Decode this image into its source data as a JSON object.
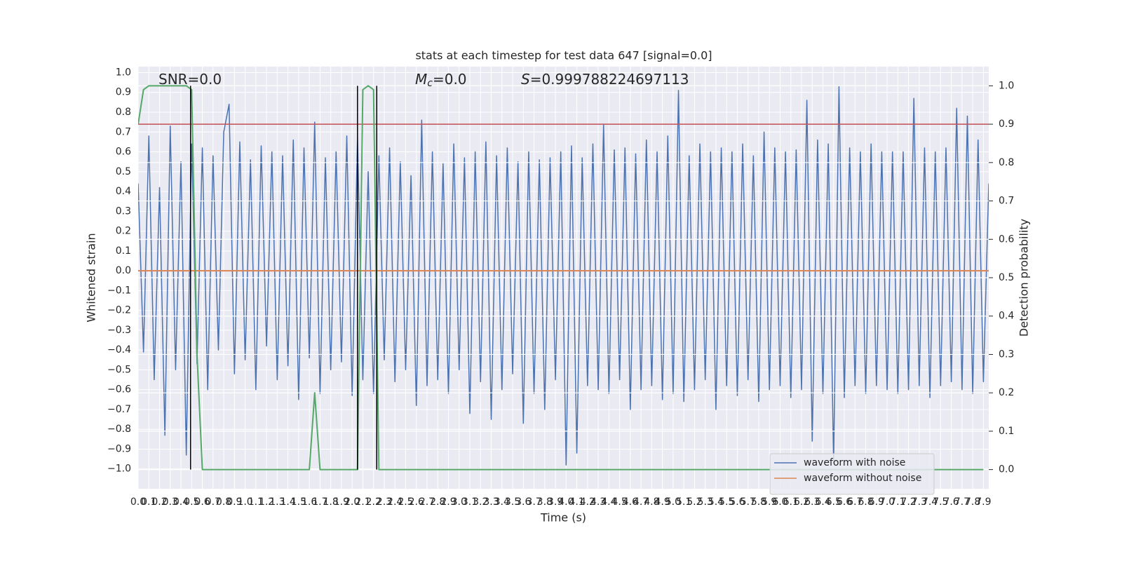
{
  "chart_data": {
    "type": "line",
    "title": "stats at each timestep for test data 647 [signal=0.0]",
    "xlabel": "Time (s)",
    "ylabel": "Whitened strain",
    "y2label": "Detection probability",
    "annotations": [
      {
        "text": "SNR=0.0"
      },
      {
        "symbol": "M",
        "subscript": "c",
        "text": "=0.0"
      },
      {
        "symbol": "S",
        "text": "=0.999788224697113"
      }
    ],
    "background": "#eaeaf2",
    "grid": true,
    "legend": "lower right",
    "xlim": [
      0,
      7.95
    ],
    "ylim": [
      -1.1,
      1.03
    ],
    "y2lim": [
      -0.05,
      1.05
    ],
    "xticks": [
      {
        "value": 0,
        "label": "0.0"
      },
      0.1,
      0.2,
      0.3,
      0.4,
      0.5,
      0.6,
      0.7,
      0.8,
      0.9,
      {
        "value": 1,
        "label": "1.0"
      },
      1.1,
      1.2,
      1.3,
      1.4,
      1.5,
      1.6,
      1.7,
      1.8,
      1.9,
      {
        "value": 2,
        "label": "2.0"
      },
      2.1,
      2.2,
      2.3,
      2.4,
      2.5,
      2.6,
      2.7,
      2.8,
      2.9,
      {
        "value": 3,
        "label": "3.0"
      },
      3.1,
      3.2,
      3.3,
      3.4,
      3.5,
      3.6,
      3.7,
      3.8,
      3.9,
      {
        "value": 4,
        "label": "4.0"
      },
      4.1,
      4.2,
      4.3,
      4.4,
      4.5,
      4.6,
      4.7,
      4.8,
      4.9,
      {
        "value": 5,
        "label": "5.0"
      },
      5.1,
      5.2,
      5.3,
      5.4,
      5.5,
      5.6,
      5.7,
      5.8,
      5.9,
      {
        "value": 6,
        "label": "6.0"
      },
      6.1,
      6.2,
      6.3,
      6.4,
      6.5,
      6.6,
      6.7,
      6.8,
      6.9,
      {
        "value": 7,
        "label": "7.0"
      },
      7.1,
      7.2,
      7.3,
      7.4,
      7.5,
      7.6,
      7.7,
      7.8,
      7.9
    ],
    "yticks": [
      {
        "value": -1,
        "label": "−1.0"
      },
      {
        "value": -0.9,
        "label": "−0.9"
      },
      {
        "value": -0.8,
        "label": "−0.8"
      },
      {
        "value": -0.7,
        "label": "−0.7"
      },
      {
        "value": -0.6,
        "label": "−0.6"
      },
      {
        "value": -0.5,
        "label": "−0.5"
      },
      {
        "value": -0.4,
        "label": "−0.4"
      },
      {
        "value": -0.3,
        "label": "−0.3"
      },
      {
        "value": -0.2,
        "label": "−0.2"
      },
      {
        "value": -0.1,
        "label": "−0.1"
      },
      {
        "value": 0,
        "label": "0.0"
      },
      0.1,
      0.2,
      0.3,
      0.4,
      0.5,
      0.6,
      0.7,
      0.8,
      0.9,
      {
        "value": 1,
        "label": "1.0"
      }
    ],
    "y2ticks": [
      {
        "value": 0,
        "label": "0.0"
      },
      0.1,
      0.2,
      0.3,
      0.4,
      0.5,
      0.6,
      0.7,
      0.8,
      0.9,
      {
        "value": 1,
        "label": "1.0"
      }
    ],
    "series": [
      {
        "name": "waveform with noise",
        "color": "#4c72b0",
        "x": [
          0,
          0.05,
          0.1,
          0.15,
          0.2,
          0.25,
          0.3,
          0.35,
          0.4,
          0.45,
          0.5,
          0.55,
          0.6,
          0.65,
          0.7,
          0.75,
          0.8,
          0.85,
          0.9,
          0.95,
          1,
          1.05,
          1.1,
          1.15,
          1.2,
          1.25,
          1.3,
          1.35,
          1.4,
          1.45,
          1.5,
          1.55,
          1.6,
          1.65,
          1.7,
          1.75,
          1.8,
          1.85,
          1.9,
          1.95,
          2,
          2.05,
          2.1,
          2.15,
          2.2,
          2.25,
          2.3,
          2.35,
          2.4,
          2.45,
          2.5,
          2.55,
          2.6,
          2.65,
          2.7,
          2.75,
          2.8,
          2.85,
          2.9,
          2.95,
          3,
          3.05,
          3.1,
          3.15,
          3.2,
          3.25,
          3.3,
          3.35,
          3.4,
          3.45,
          3.5,
          3.55,
          3.6,
          3.65,
          3.7,
          3.75,
          3.8,
          3.85,
          3.9,
          3.95,
          4,
          4.05,
          4.1,
          4.15,
          4.2,
          4.25,
          4.3,
          4.35,
          4.4,
          4.45,
          4.5,
          4.55,
          4.6,
          4.65,
          4.7,
          4.75,
          4.8,
          4.85,
          4.9,
          4.95,
          5,
          5.05,
          5.1,
          5.15,
          5.2,
          5.25,
          5.3,
          5.35,
          5.4,
          5.45,
          5.5,
          5.55,
          5.6,
          5.65,
          5.7,
          5.75,
          5.8,
          5.85,
          5.9,
          5.95,
          6,
          6.05,
          6.1,
          6.15,
          6.2,
          6.25,
          6.3,
          6.35,
          6.4,
          6.45,
          6.5,
          6.55,
          6.6,
          6.65,
          6.7,
          6.75,
          6.8,
          6.85,
          6.9,
          6.95,
          7,
          7.05,
          7.1,
          7.15,
          7.2,
          7.25,
          7.3,
          7.35,
          7.4,
          7.45,
          7.5,
          7.55,
          7.6,
          7.65,
          7.7,
          7.75,
          7.8,
          7.85,
          7.9,
          7.95
        ],
        "values": [
          0.44,
          -0.41,
          0.68,
          -0.55,
          0.42,
          -0.83,
          0.73,
          -0.5,
          0.55,
          -0.93,
          0.64,
          -0.47,
          0.62,
          -0.6,
          0.58,
          -0.4,
          0.7,
          0.84,
          -0.52,
          0.65,
          -0.45,
          0.56,
          -0.6,
          0.63,
          -0.38,
          0.6,
          -0.55,
          0.58,
          -0.48,
          0.66,
          -0.65,
          0.62,
          -0.44,
          0.75,
          -0.62,
          0.57,
          -0.5,
          0.6,
          -0.46,
          0.68,
          -0.63,
          0.67,
          -0.55,
          0.5,
          -0.62,
          0.58,
          -0.45,
          0.62,
          -0.56,
          0.55,
          -0.5,
          0.48,
          -0.68,
          0.76,
          -0.58,
          0.6,
          -0.55,
          0.54,
          -0.62,
          0.64,
          -0.5,
          0.57,
          -0.72,
          0.6,
          -0.56,
          0.65,
          -0.75,
          0.58,
          -0.6,
          0.62,
          -0.52,
          0.55,
          -0.77,
          0.6,
          -0.62,
          0.56,
          -0.7,
          0.57,
          -0.55,
          0.6,
          -0.98,
          0.63,
          -0.92,
          0.57,
          -0.58,
          0.64,
          -0.6,
          0.74,
          -0.62,
          0.61,
          -0.55,
          0.62,
          -0.7,
          0.59,
          -0.6,
          0.66,
          -0.58,
          0.6,
          -0.65,
          0.68,
          -0.62,
          0.91,
          -0.66,
          0.58,
          -0.6,
          0.64,
          -0.55,
          0.6,
          -0.7,
          0.62,
          -0.58,
          0.6,
          -0.63,
          0.64,
          -0.55,
          0.58,
          -0.66,
          0.7,
          -0.6,
          0.62,
          -0.58,
          0.6,
          -0.64,
          0.61,
          -0.6,
          0.86,
          -0.86,
          0.66,
          -0.62,
          0.64,
          -0.97,
          0.93,
          -0.64,
          0.62,
          -0.58,
          0.6,
          -0.62,
          0.64,
          -0.58,
          0.6,
          -0.6,
          0.6,
          -0.62,
          0.6,
          -0.6,
          0.87,
          -0.58,
          0.62,
          -0.64,
          0.6,
          -0.58,
          0.62,
          -0.56,
          0.82,
          -0.6,
          0.78,
          -0.62,
          0.66,
          -0.56,
          0.44
        ]
      },
      {
        "name": "waveform without noise",
        "color": "#dd8452",
        "x": [
          0,
          7.95
        ],
        "values": [
          0,
          0
        ]
      },
      {
        "color": "#55a868",
        "axis": "y2",
        "x": [
          0,
          0.05,
          0.1,
          0.45,
          0.5,
          0.55,
          0.6,
          1.6,
          1.65,
          1.7,
          2.05,
          2.1,
          2.15,
          2.2,
          2.25,
          7.9
        ],
        "values": [
          0.9,
          0.99,
          1.0,
          1.0,
          0.99,
          0.3,
          0.0,
          0.0,
          0.2,
          0.0,
          0.0,
          0.99,
          1.0,
          0.99,
          0.0,
          0.0
        ]
      }
    ],
    "hlines": [
      {
        "value": 0.9,
        "axis": "y2",
        "color": "#c44e52"
      }
    ],
    "vlines": {
      "x": [
        0.49,
        2.05,
        2.23
      ],
      "ymin": 0,
      "ymax": 1,
      "axis": "y2",
      "color": "#000000"
    }
  }
}
